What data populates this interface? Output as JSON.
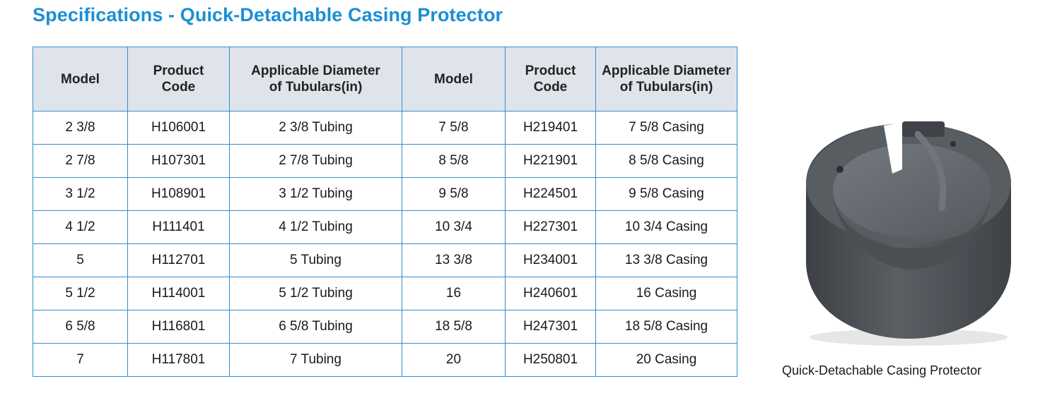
{
  "title": "Specifications - Quick-Detachable Casing Protector",
  "table": {
    "headers": [
      [
        "Model"
      ],
      [
        "Product",
        "Code"
      ],
      [
        "Applicable Diameter",
        "of Tubulars(in)"
      ],
      [
        "Model"
      ],
      [
        "Product",
        "Code"
      ],
      [
        "Applicable Diameter",
        "of Tubulars(in)"
      ]
    ],
    "rows": [
      [
        "2 3/8",
        "H106001",
        "2 3/8 Tubing",
        "7 5/8",
        "H219401",
        "7 5/8 Casing"
      ],
      [
        "2 7/8",
        "H107301",
        "2 7/8 Tubing",
        "8 5/8",
        "H221901",
        "8 5/8 Casing"
      ],
      [
        "3 1/2",
        "H108901",
        "3 1/2 Tubing",
        "9 5/8",
        "H224501",
        "9 5/8 Casing"
      ],
      [
        "4 1/2",
        "H111401",
        "4 1/2 Tubing",
        "10 3/4",
        "H227301",
        "10 3/4 Casing"
      ],
      [
        "5",
        "H112701",
        "5 Tubing",
        "13 3/8",
        "H234001",
        "13 3/8 Casing"
      ],
      [
        "5 1/2",
        "H114001",
        "5 1/2 Tubing",
        "16",
        "H240601",
        "16 Casing"
      ],
      [
        "6 5/8",
        "H116801",
        "6 5/8 Tubing",
        "18 5/8",
        "H247301",
        "18 5/8 Casing"
      ],
      [
        "7",
        "H117801",
        "7 Tubing",
        "20",
        "H250801",
        "20 Casing"
      ]
    ]
  },
  "figure": {
    "caption": "Quick-Detachable Casing Protector",
    "colors": {
      "body": "#4b4f54",
      "inner": "#666b70",
      "highlight": "#8a9096"
    }
  }
}
